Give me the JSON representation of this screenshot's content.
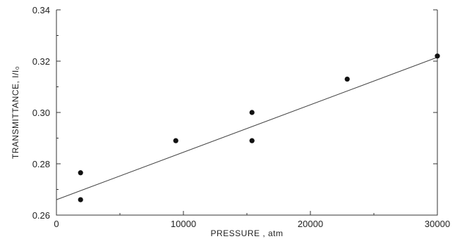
{
  "chart_data": {
    "type": "scatter",
    "title": "",
    "xlabel": "PRESSURE , atm",
    "ylabel": "TRANSMITTANCE, I/I₀",
    "xlim": [
      0,
      30000
    ],
    "ylim": [
      0.26,
      0.34
    ],
    "xticks": [
      0,
      10000,
      20000,
      30000
    ],
    "xtick_labels": [
      "0",
      "10000",
      "20000",
      "30000"
    ],
    "yticks": [
      0.26,
      0.28,
      0.3,
      0.32,
      0.34
    ],
    "ytick_labels": [
      "0.26",
      "0.28",
      "0.30",
      "0.32",
      "0.34"
    ],
    "grid": false,
    "series": [
      {
        "x": [
          1900,
          1900,
          9400,
          15400,
          15400,
          22900,
          30000
        ],
        "y": [
          0.2765,
          0.266,
          0.289,
          0.289,
          0.3,
          0.313,
          0.322
        ]
      }
    ],
    "fit_line": {
      "x": [
        0,
        30000
      ],
      "y": [
        0.266,
        0.3215
      ]
    },
    "colors": {
      "points": "#111111",
      "line": "#444444",
      "axes": "#333333"
    }
  }
}
